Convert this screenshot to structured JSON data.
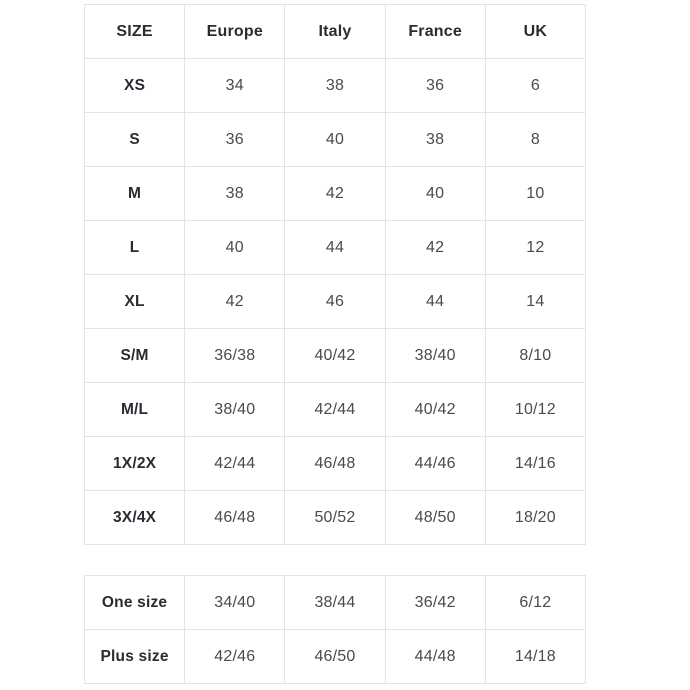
{
  "colors": {
    "background": "#ffffff",
    "border": "#e3e3e6",
    "label_text": "#2b2b33",
    "value_text": "#4a4a52"
  },
  "size_chart": {
    "columns": [
      "SIZE",
      "Europe",
      "Italy",
      "France",
      "UK"
    ],
    "rows": [
      {
        "label": "XS",
        "values": [
          "34",
          "38",
          "36",
          "6"
        ]
      },
      {
        "label": "S",
        "values": [
          "36",
          "40",
          "38",
          "8"
        ]
      },
      {
        "label": "M",
        "values": [
          "38",
          "42",
          "40",
          "10"
        ]
      },
      {
        "label": "L",
        "values": [
          "40",
          "44",
          "42",
          "12"
        ]
      },
      {
        "label": "XL",
        "values": [
          "42",
          "46",
          "44",
          "14"
        ]
      },
      {
        "label": "S/M",
        "values": [
          "36/38",
          "40/42",
          "38/40",
          "8/10"
        ]
      },
      {
        "label": "M/L",
        "values": [
          "38/40",
          "42/44",
          "40/42",
          "10/12"
        ]
      },
      {
        "label": "1X/2X",
        "values": [
          "42/44",
          "46/48",
          "44/46",
          "14/16"
        ]
      },
      {
        "label": "3X/4X",
        "values": [
          "46/48",
          "50/52",
          "48/50",
          "18/20"
        ]
      }
    ]
  },
  "special_sizes": {
    "rows": [
      {
        "label": "One size",
        "values": [
          "34/40",
          "38/44",
          "36/42",
          "6/12"
        ]
      },
      {
        "label": "Plus size",
        "values": [
          "42/46",
          "46/50",
          "44/48",
          "14/18"
        ]
      }
    ]
  }
}
